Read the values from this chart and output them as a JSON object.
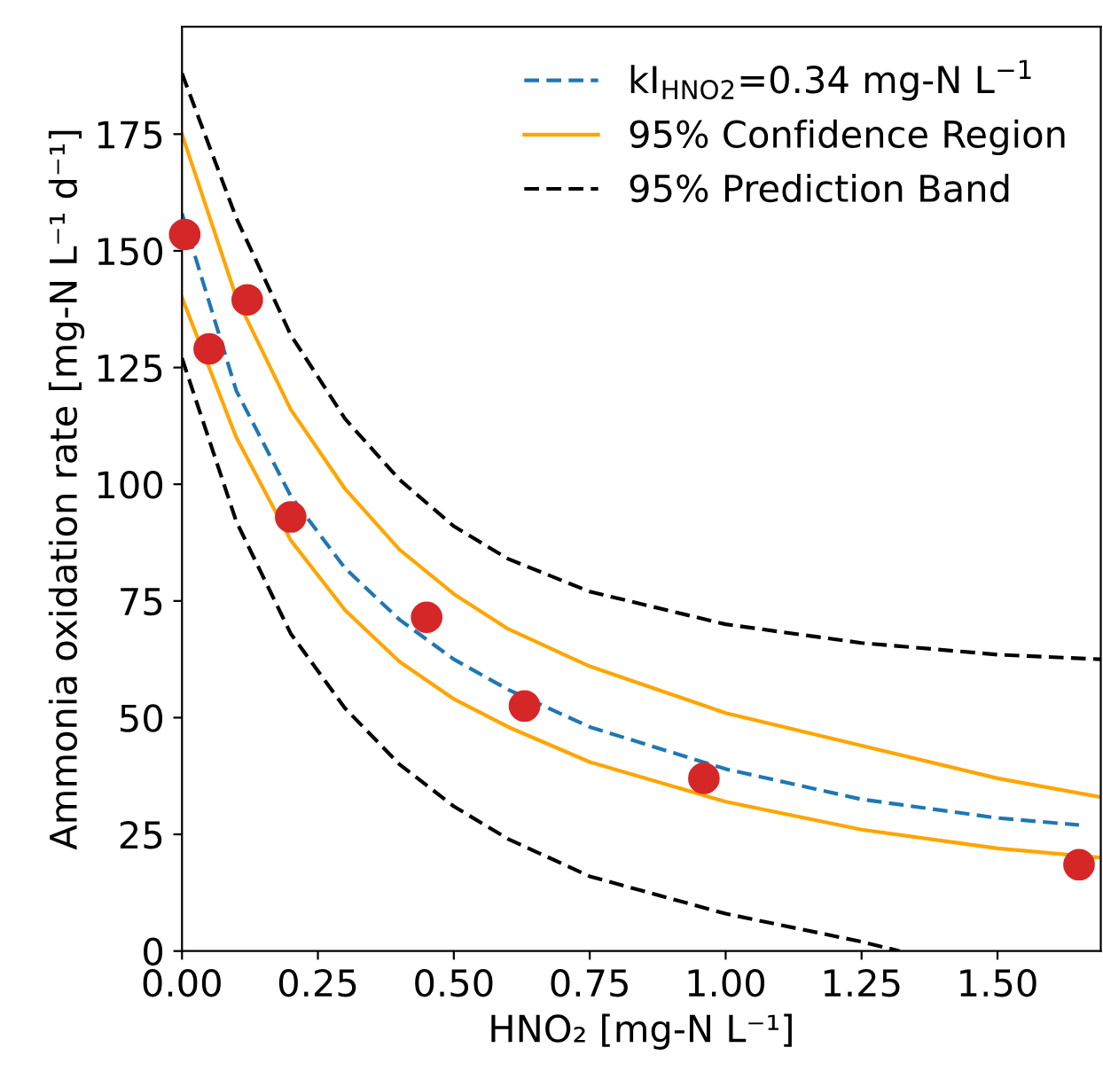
{
  "chart_data": {
    "type": "scatter",
    "xlabel": "HNO₂ [mg-N L⁻¹]",
    "ylabel": "Ammonia oxidation rate [mg-N L⁻¹ d⁻¹]",
    "xlim": [
      0,
      1.69
    ],
    "ylim": [
      0,
      198
    ],
    "xticks": [
      {
        "value": 0,
        "label": "0.00"
      },
      0.25,
      {
        "value": 0.5,
        "label": "0.50"
      },
      0.75,
      {
        "value": 1,
        "label": "1.00"
      },
      1.25,
      {
        "value": 1.5,
        "label": "1.50"
      }
    ],
    "yticks": [
      0,
      25,
      50,
      75,
      100,
      125,
      150,
      175
    ],
    "grid": false,
    "legend": "top right",
    "series": [
      {
        "type": "line",
        "name": "kI$_{HNO2}$=0.34 mg-N L$^{−1}$",
        "color": "#1f77b4",
        "line_style": "dashed",
        "x": [
          0,
          0.1,
          0.2,
          0.3,
          0.4,
          0.5,
          0.6,
          0.75,
          1.0,
          1.25,
          1.5,
          1.65
        ],
        "values": [
          158,
          120,
          97.5,
          82,
          71,
          62.5,
          56,
          48,
          39,
          32.5,
          28.5,
          27
        ]
      },
      {
        "type": "line",
        "name": "95% Confidence Region",
        "color": "#ffa500",
        "line_style": "solid",
        "x": [
          0,
          0.1,
          0.2,
          0.3,
          0.4,
          0.5,
          0.6,
          0.75,
          1.0,
          1.25,
          1.5,
          1.69
        ],
        "values": [
          175,
          140,
          116,
          99,
          86,
          76.5,
          69,
          61,
          51,
          44,
          37,
          33
        ]
      },
      {
        "type": "line",
        "color": "#ffa500",
        "line_style": "solid",
        "x": [
          0,
          0.1,
          0.2,
          0.3,
          0.4,
          0.5,
          0.6,
          0.75,
          1.0,
          1.25,
          1.5,
          1.69
        ],
        "values": [
          140,
          110,
          88,
          73,
          62,
          54,
          48,
          40.5,
          32,
          26,
          22,
          20
        ]
      },
      {
        "type": "line",
        "name": "95% Prediction Band",
        "color": "#000000",
        "line_style": "dashed",
        "x": [
          0,
          0.1,
          0.2,
          0.3,
          0.4,
          0.5,
          0.6,
          0.75,
          1.0,
          1.25,
          1.5,
          1.69
        ],
        "values": [
          188,
          157,
          132,
          114,
          101,
          91,
          84,
          77,
          70,
          66,
          63.5,
          62.5
        ]
      },
      {
        "type": "line",
        "color": "#000000",
        "line_style": "dashed",
        "x": [
          0,
          0.1,
          0.2,
          0.3,
          0.4,
          0.5,
          0.6,
          0.75,
          1.0,
          1.25,
          1.32
        ],
        "values": [
          127,
          92,
          68,
          52,
          40,
          31,
          24,
          16,
          8,
          2,
          0
        ]
      },
      {
        "color": "#d62728",
        "marker": "circle",
        "x": [
          0.005,
          0.05,
          0.12,
          0.2,
          0.45,
          0.63,
          0.96,
          1.65
        ],
        "values": [
          153.5,
          129,
          139.5,
          93,
          71.5,
          52.5,
          37,
          18.5
        ]
      }
    ]
  }
}
